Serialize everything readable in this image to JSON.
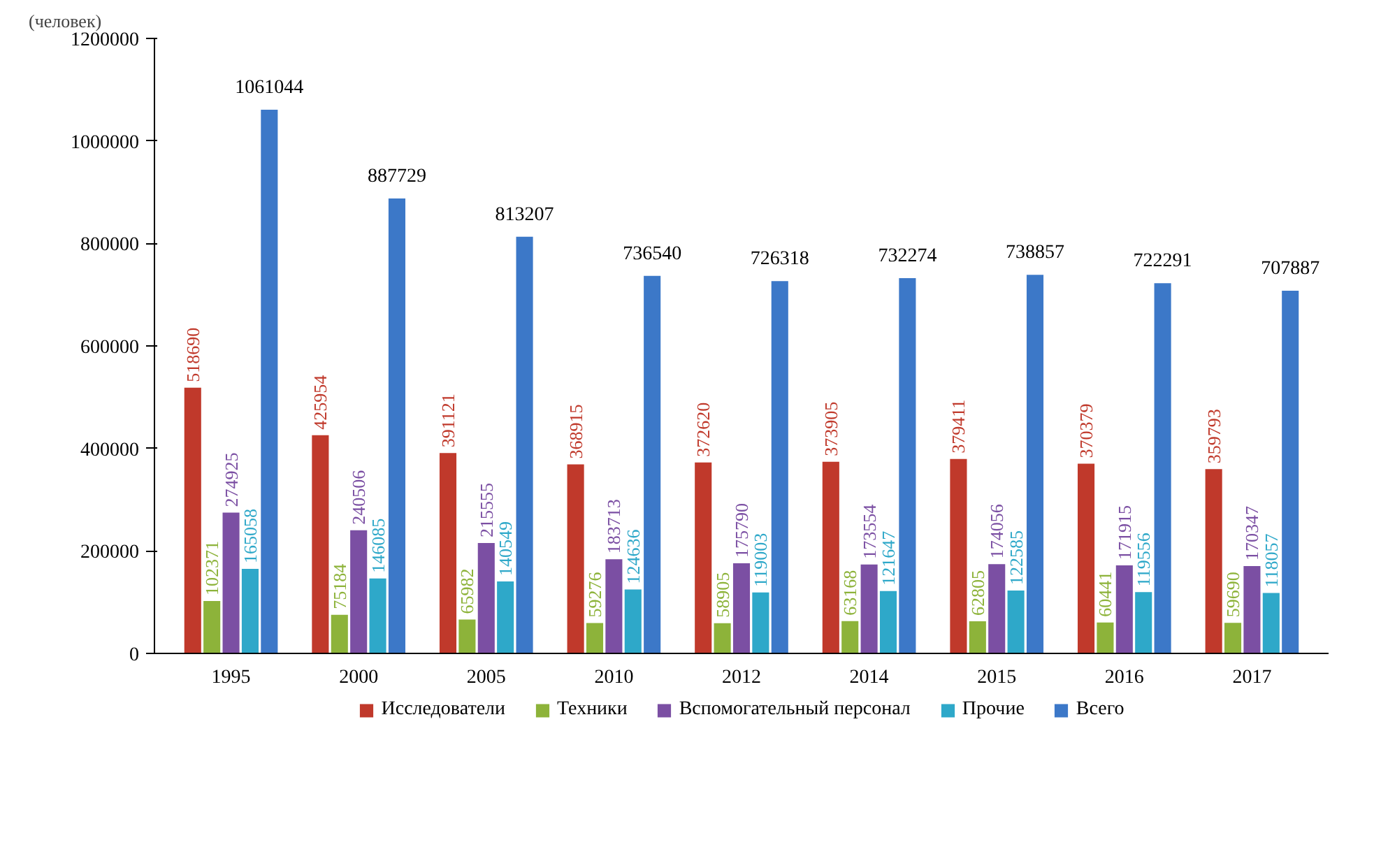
{
  "chart_data": {
    "type": "bar",
    "ylabel": "(человек)",
    "categories": [
      "1995",
      "2000",
      "2005",
      "2010",
      "2012",
      "2014",
      "2015",
      "2016",
      "2017"
    ],
    "series": [
      {
        "name": "Исследователи",
        "color": "#c0392b",
        "values": [
          518690,
          425954,
          391121,
          368915,
          372620,
          373905,
          379411,
          370379,
          359793
        ]
      },
      {
        "name": "Техники",
        "color": "#8db33a",
        "values": [
          102371,
          75184,
          65982,
          59276,
          58905,
          63168,
          62805,
          60441,
          59690
        ]
      },
      {
        "name": "Вспомогательный персонал",
        "color": "#7b4fa3",
        "values": [
          274925,
          240506,
          215555,
          183713,
          175790,
          173554,
          174056,
          171915,
          170347
        ]
      },
      {
        "name": "Прочие",
        "color": "#2ea8c9",
        "values": [
          165058,
          146085,
          140549,
          124636,
          119003,
          121647,
          122585,
          119556,
          118057
        ]
      },
      {
        "name": "Всего",
        "color": "#3c78c8",
        "values": [
          1061044,
          887729,
          813207,
          736540,
          726318,
          732274,
          738857,
          722291,
          707887
        ]
      }
    ],
    "ylim": [
      0,
      1200000
    ],
    "yticks": [
      0,
      200000,
      400000,
      600000,
      800000,
      1000000,
      1200000
    ],
    "grid": false,
    "data_labels": true,
    "legend": "bottom"
  }
}
